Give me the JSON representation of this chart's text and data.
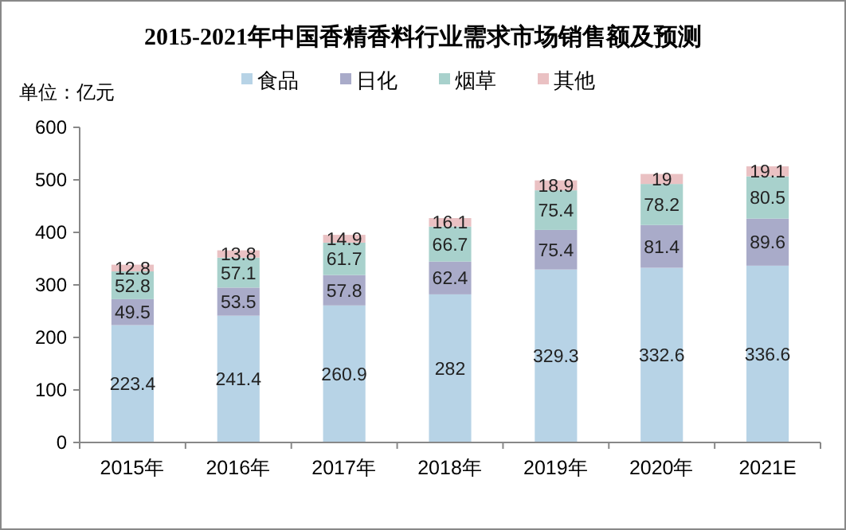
{
  "chart_data": {
    "type": "bar",
    "title": "2015-2021年中国香精香料行业需求市场销售额及预测",
    "ylabel": "单位：亿元",
    "categories": [
      "2015年",
      "2016年",
      "2017年",
      "2018年",
      "2019年",
      "2020年",
      "2021E"
    ],
    "stacked": true,
    "data_labels": true,
    "legend": "top",
    "grid": false,
    "ylim": [
      0,
      600
    ],
    "yticks": [
      0,
      100,
      200,
      300,
      400,
      500,
      600
    ],
    "series": [
      {
        "name": "食品",
        "color": "#b7d3e6",
        "values": [
          223.4,
          241.4,
          260.9,
          282,
          329.3,
          332.6,
          336.6
        ]
      },
      {
        "name": "日化",
        "color": "#a9abc9",
        "values": [
          49.5,
          53.5,
          57.8,
          62.4,
          75.4,
          81.4,
          89.6
        ]
      },
      {
        "name": "烟草",
        "color": "#a8d1cc",
        "values": [
          52.8,
          57.1,
          61.7,
          66.7,
          75.4,
          78.2,
          80.5
        ]
      },
      {
        "name": "其他",
        "color": "#eac1c3",
        "values": [
          12.8,
          13.8,
          14.9,
          16.1,
          18.9,
          19,
          19.1
        ]
      }
    ]
  }
}
